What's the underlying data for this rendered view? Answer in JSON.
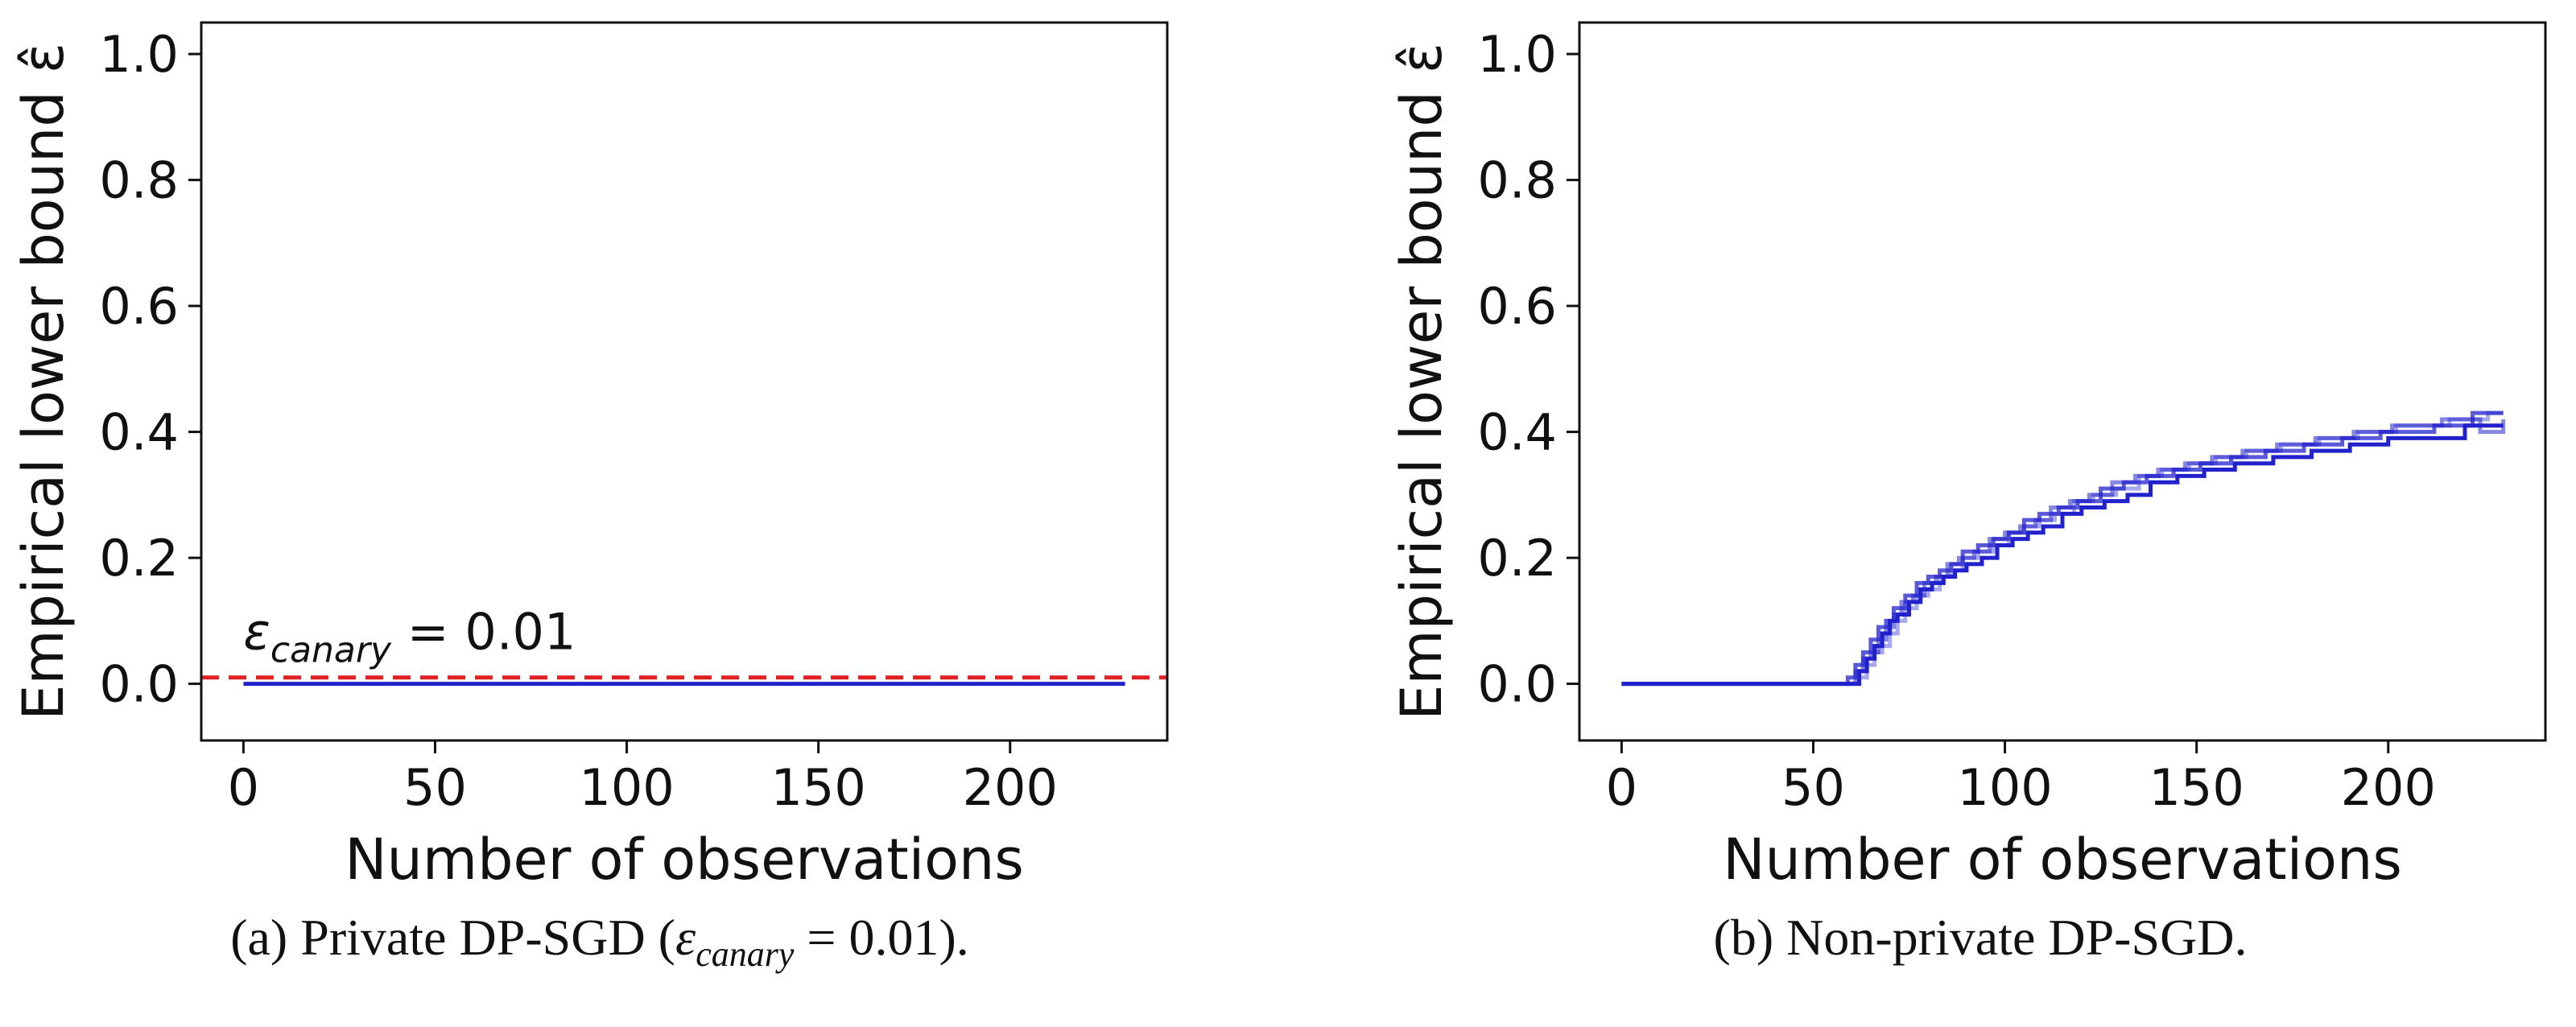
{
  "colors": {
    "series_blue": "#2222cc",
    "canary_red": "#e02020",
    "axis": "#111111"
  },
  "chart_data": [
    {
      "type": "line",
      "xlabel": "Number of observations",
      "ylabel": "Empirical lower bound ε̂",
      "xlim": [
        -11,
        241
      ],
      "ylim": [
        -0.09,
        1.05
      ],
      "xticks": [
        0,
        50,
        100,
        150,
        200
      ],
      "yticks": [
        0.0,
        0.2,
        0.4,
        0.6,
        0.8,
        1.0
      ],
      "xtick_labels": [
        "0",
        "50",
        "100",
        "150",
        "200"
      ],
      "ytick_labels": [
        "0.0",
        "0.2",
        "0.4",
        "0.6",
        "0.8",
        "1.0"
      ],
      "grid": false,
      "caption": "(a) Private DP-SGD (εcanary = 0.01).",
      "reference_line": {
        "y": 0.01,
        "style": "dashed",
        "color": "#e02020"
      },
      "annotation": {
        "text": "εcanary = 0.01",
        "x": 0,
        "y": 0.05
      },
      "series": [
        {
          "x": [
            0,
            230
          ],
          "y": [
            0.0,
            0.0
          ],
          "opacity": 1.0
        }
      ]
    },
    {
      "type": "line",
      "xlabel": "Number of observations",
      "ylabel": "Empirical lower bound ε̂",
      "xlim": [
        -11,
        241
      ],
      "ylim": [
        -0.09,
        1.05
      ],
      "xticks": [
        0,
        50,
        100,
        150,
        200
      ],
      "yticks": [
        0.0,
        0.2,
        0.4,
        0.6,
        0.8,
        1.0
      ],
      "xtick_labels": [
        "0",
        "50",
        "100",
        "150",
        "200"
      ],
      "ytick_labels": [
        "0.0",
        "0.2",
        "0.4",
        "0.6",
        "0.8",
        "1.0"
      ],
      "grid": false,
      "caption": "(b) Non-private DP-SGD.",
      "series": [
        {
          "opacity": 1.0,
          "x": [
            0,
            58,
            60,
            62,
            64,
            66,
            68,
            70,
            72,
            75,
            78,
            81,
            84,
            87,
            90,
            94,
            98,
            102,
            106,
            110,
            115,
            120,
            126,
            132,
            138,
            145,
            152,
            160,
            170,
            180,
            190,
            200,
            220,
            230
          ],
          "y": [
            0.0,
            0.0,
            0.0,
            0.02,
            0.04,
            0.06,
            0.08,
            0.1,
            0.11,
            0.13,
            0.15,
            0.16,
            0.17,
            0.18,
            0.19,
            0.2,
            0.22,
            0.23,
            0.24,
            0.25,
            0.27,
            0.28,
            0.29,
            0.3,
            0.32,
            0.33,
            0.34,
            0.35,
            0.36,
            0.37,
            0.38,
            0.39,
            0.41,
            0.41
          ]
        },
        {
          "opacity": 0.75,
          "x": [
            0,
            57,
            59,
            61,
            63,
            65,
            67,
            69,
            71,
            74,
            77,
            80,
            83,
            86,
            89,
            93,
            97,
            101,
            105,
            109,
            114,
            119,
            125,
            131,
            137,
            144,
            151,
            159,
            168,
            178,
            188,
            198,
            212,
            222,
            230
          ],
          "y": [
            0.0,
            0.0,
            0.01,
            0.03,
            0.05,
            0.07,
            0.09,
            0.1,
            0.12,
            0.14,
            0.16,
            0.17,
            0.18,
            0.19,
            0.21,
            0.22,
            0.23,
            0.24,
            0.26,
            0.27,
            0.28,
            0.29,
            0.31,
            0.32,
            0.33,
            0.34,
            0.35,
            0.36,
            0.37,
            0.38,
            0.39,
            0.4,
            0.41,
            0.43,
            0.43
          ]
        },
        {
          "opacity": 0.55,
          "x": [
            0,
            59,
            61,
            63,
            65,
            67,
            69,
            71,
            73,
            76,
            79,
            82,
            85,
            88,
            92,
            96,
            100,
            104,
            108,
            112,
            117,
            122,
            128,
            134,
            140,
            147,
            154,
            162,
            171,
            181,
            191,
            201,
            214,
            224,
            230
          ],
          "y": [
            0.0,
            0.0,
            0.02,
            0.04,
            0.05,
            0.07,
            0.09,
            0.11,
            0.13,
            0.14,
            0.16,
            0.17,
            0.19,
            0.2,
            0.21,
            0.23,
            0.24,
            0.25,
            0.26,
            0.28,
            0.29,
            0.3,
            0.32,
            0.33,
            0.34,
            0.35,
            0.36,
            0.37,
            0.38,
            0.39,
            0.4,
            0.41,
            0.42,
            0.4,
            0.42
          ]
        },
        {
          "opacity": 0.4,
          "x": [
            0,
            60,
            62,
            64,
            66,
            68,
            70,
            72,
            74,
            77,
            80,
            83,
            86,
            89,
            93,
            97,
            101,
            105,
            109,
            113,
            118,
            123,
            129,
            135,
            141,
            148,
            155,
            163,
            172,
            182,
            192,
            202,
            216,
            226,
            230
          ],
          "y": [
            0.0,
            0.0,
            0.01,
            0.03,
            0.05,
            0.06,
            0.08,
            0.1,
            0.12,
            0.14,
            0.15,
            0.17,
            0.18,
            0.2,
            0.21,
            0.22,
            0.24,
            0.25,
            0.26,
            0.27,
            0.29,
            0.3,
            0.31,
            0.33,
            0.34,
            0.35,
            0.36,
            0.37,
            0.38,
            0.39,
            0.4,
            0.41,
            0.42,
            0.43,
            0.43
          ]
        }
      ]
    }
  ]
}
